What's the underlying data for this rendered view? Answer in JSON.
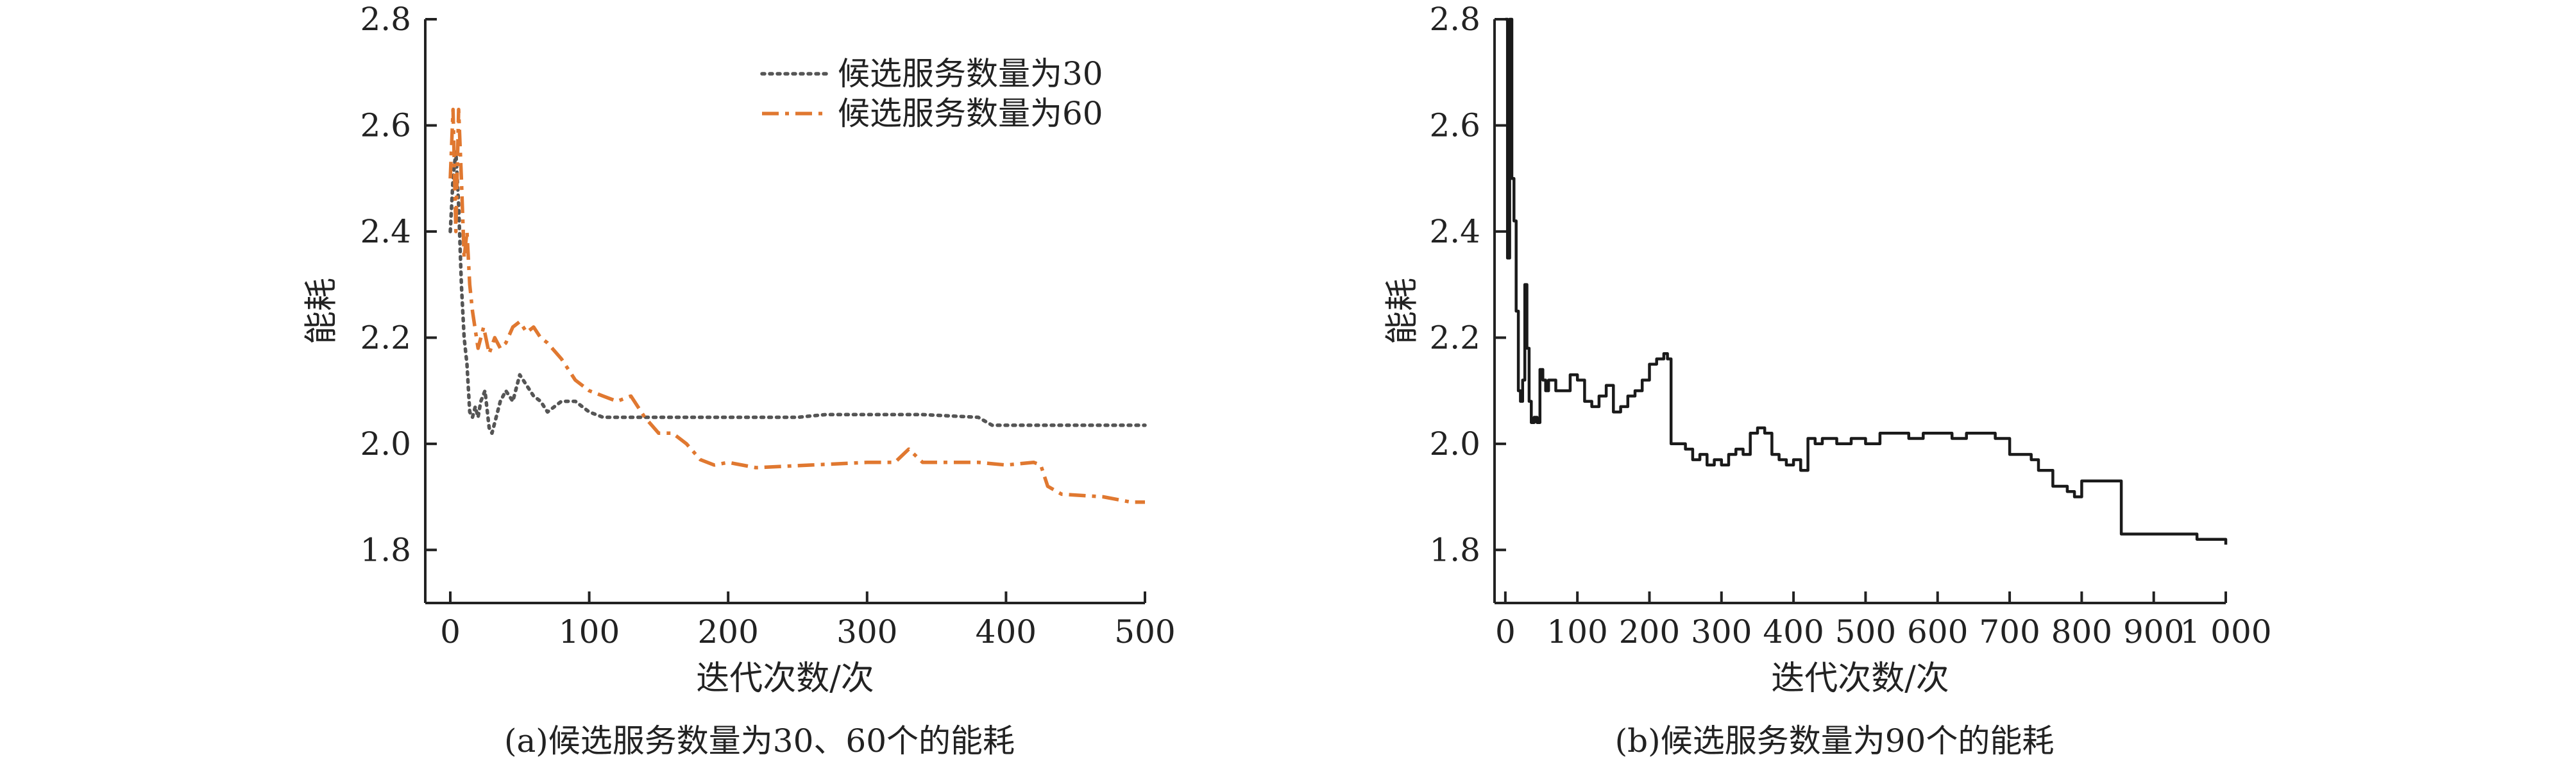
{
  "chart_data": [
    {
      "type": "line",
      "caption": "(a)候选服务数量为30、60个的能耗",
      "xlabel": "迭代次数/次",
      "ylabel": "能耗",
      "xlim": [
        -18,
        500
      ],
      "ylim": [
        1.7,
        2.8
      ],
      "xticks": [
        0,
        100,
        200,
        300,
        400,
        500
      ],
      "yticks": [
        1.8,
        2.0,
        2.2,
        2.4,
        2.6,
        2.8
      ],
      "legend_position": "top-right",
      "grid": false,
      "series": [
        {
          "name": "候选服务数量为30",
          "color": "#555555",
          "style": "dotted",
          "x": [
            0,
            2,
            4,
            6,
            8,
            10,
            12,
            14,
            16,
            18,
            20,
            22,
            25,
            28,
            30,
            33,
            36,
            40,
            45,
            50,
            55,
            60,
            65,
            70,
            75,
            80,
            90,
            100,
            110,
            120,
            140,
            160,
            200,
            250,
            270,
            300,
            340,
            380,
            390,
            420,
            460,
            500
          ],
          "y": [
            2.4,
            2.5,
            2.55,
            2.45,
            2.3,
            2.2,
            2.15,
            2.06,
            2.05,
            2.07,
            2.05,
            2.08,
            2.1,
            2.03,
            2.02,
            2.05,
            2.08,
            2.1,
            2.08,
            2.13,
            2.11,
            2.09,
            2.08,
            2.06,
            2.07,
            2.08,
            2.08,
            2.06,
            2.05,
            2.05,
            2.05,
            2.05,
            2.05,
            2.05,
            2.055,
            2.055,
            2.055,
            2.05,
            2.035,
            2.035,
            2.035,
            2.035
          ]
        },
        {
          "name": "候选服务数量为60",
          "color": "#E07830",
          "style": "dashdot",
          "x": [
            0,
            2,
            4,
            6,
            8,
            10,
            12,
            14,
            16,
            20,
            24,
            28,
            32,
            36,
            40,
            45,
            50,
            55,
            60,
            65,
            70,
            80,
            90,
            100,
            110,
            120,
            130,
            140,
            150,
            160,
            170,
            180,
            190,
            200,
            220,
            260,
            300,
            320,
            330,
            340,
            380,
            400,
            420,
            425,
            430,
            440,
            470,
            490,
            500
          ],
          "y": [
            2.5,
            2.63,
            2.4,
            2.63,
            2.5,
            2.35,
            2.4,
            2.3,
            2.25,
            2.18,
            2.22,
            2.17,
            2.2,
            2.18,
            2.19,
            2.22,
            2.23,
            2.21,
            2.22,
            2.2,
            2.19,
            2.16,
            2.12,
            2.1,
            2.09,
            2.08,
            2.09,
            2.05,
            2.02,
            2.02,
            2.0,
            1.97,
            1.96,
            1.965,
            1.955,
            1.96,
            1.965,
            1.965,
            1.99,
            1.965,
            1.965,
            1.96,
            1.965,
            1.96,
            1.92,
            1.905,
            1.9,
            1.89,
            1.89
          ]
        }
      ]
    },
    {
      "type": "line",
      "caption": "(b)候选服务数量为90个的能耗",
      "xlabel": "迭代次数/次",
      "ylabel": "能耗",
      "xlim": [
        -15,
        1000
      ],
      "ylim": [
        1.7,
        2.8
      ],
      "xticks": [
        0,
        100,
        200,
        300,
        400,
        500,
        600,
        700,
        800,
        900,
        1000
      ],
      "xtick_labels": [
        "0",
        "100",
        "200",
        "300",
        "400",
        "500",
        "600",
        "700",
        "800",
        "900",
        "1 000"
      ],
      "yticks": [
        1.8,
        2.0,
        2.2,
        2.4,
        2.6,
        2.8
      ],
      "grid": false,
      "series": [
        {
          "color": "#1a1a1a",
          "style": "solid",
          "step": true,
          "x": [
            0,
            3,
            6,
            9,
            12,
            15,
            18,
            21,
            24,
            27,
            30,
            33,
            36,
            40,
            44,
            48,
            52,
            56,
            60,
            70,
            80,
            90,
            100,
            110,
            120,
            130,
            140,
            150,
            160,
            170,
            180,
            190,
            200,
            210,
            220,
            225,
            230,
            250,
            260,
            270,
            280,
            290,
            300,
            310,
            320,
            330,
            340,
            350,
            360,
            370,
            380,
            390,
            400,
            410,
            420,
            430,
            440,
            460,
            480,
            500,
            520,
            540,
            560,
            580,
            600,
            620,
            640,
            660,
            680,
            700,
            720,
            730,
            740,
            760,
            780,
            790,
            800,
            850,
            855,
            900,
            950,
            960,
            970,
            1000
          ],
          "y": [
            2.8,
            2.35,
            2.8,
            2.5,
            2.42,
            2.25,
            2.1,
            2.08,
            2.12,
            2.3,
            2.18,
            2.08,
            2.04,
            2.05,
            2.04,
            2.14,
            2.12,
            2.1,
            2.12,
            2.1,
            2.1,
            2.13,
            2.12,
            2.08,
            2.07,
            2.09,
            2.11,
            2.06,
            2.07,
            2.09,
            2.1,
            2.12,
            2.15,
            2.16,
            2.17,
            2.16,
            2.0,
            1.99,
            1.97,
            1.98,
            1.96,
            1.97,
            1.96,
            1.98,
            1.99,
            1.98,
            2.02,
            2.03,
            2.02,
            1.98,
            1.97,
            1.96,
            1.97,
            1.95,
            2.01,
            2.0,
            2.01,
            2.0,
            2.01,
            2.0,
            2.02,
            2.02,
            2.01,
            2.02,
            2.02,
            2.01,
            2.02,
            2.02,
            2.01,
            1.98,
            1.98,
            1.97,
            1.95,
            1.92,
            1.91,
            1.9,
            1.93,
            1.93,
            1.83,
            1.83,
            1.83,
            1.82,
            1.82,
            1.81
          ]
        }
      ]
    }
  ]
}
